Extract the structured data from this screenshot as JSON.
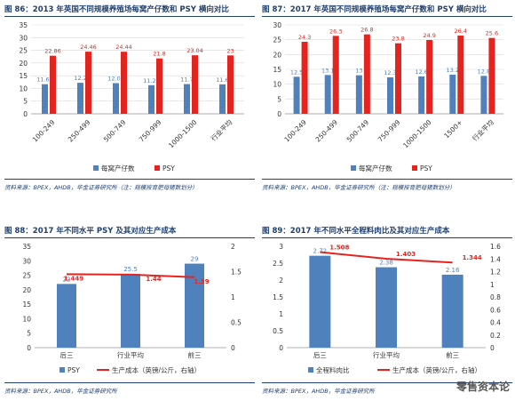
{
  "colors": {
    "bar": "#4f81bd",
    "red": "#e52420",
    "title": "#1f3f6e"
  },
  "watermark": "零售资本论",
  "panels": [
    {
      "title": "图 86：2013 年英国不同规模养殖场每窝产仔数和 PSY 横向对比",
      "source": "资料来源：BPEX，AHDB，华金证券研究所（注：规模按育肥母猪数划分）"
    },
    {
      "title": "图 87：2017 年英国不同规模养殖场每窝产仔数和 PSY 横向对比",
      "source": "资料来源：BPEX，AHDB，华金证券研究所（注：规模按育肥母猪数划分）"
    },
    {
      "title": "图 88：2017 年不同水平 PSY 及其对应生产成本",
      "source": "资料来源：BPEX，AHDB，华金证券研究所"
    },
    {
      "title": "图 89：2017 年不同水平全程料肉比及其对应生产成本",
      "source": "资料来源：BPEX，AHDB，华金证券研究所"
    }
  ],
  "chart_data": [
    {
      "type": "bar",
      "categories": [
        "100-249",
        "250-499",
        "500-749",
        "750-999",
        "1000-1500",
        "行业平均"
      ],
      "series": [
        {
          "name": "每窝产仔数",
          "values": [
            11.65,
            12.2,
            12.07,
            11.27,
            11.7,
            11.6
          ],
          "labels": [
            "11.65",
            "12.2",
            "12.07",
            "11.27",
            "11.7",
            "11.6"
          ]
        },
        {
          "name": "PSY",
          "values": [
            22.86,
            24.46,
            24.44,
            21.8,
            23.04,
            23
          ],
          "labels": [
            "22.86",
            "24.46",
            "24.44",
            "21.8",
            "23.04",
            "23"
          ]
        }
      ],
      "ylim": [
        0,
        35
      ],
      "yticks": [
        0,
        5,
        10,
        15,
        20,
        25,
        30,
        35
      ],
      "grid": true,
      "legend": "bottom"
    },
    {
      "type": "bar",
      "categories": [
        "100-249",
        "250-499",
        "500-749",
        "750-999",
        "1000-1500",
        "1500+",
        "行业平均"
      ],
      "series": [
        {
          "name": "每窝产仔数",
          "values": [
            12.5,
            13.1,
            13,
            12.3,
            12.6,
            13.2,
            12.8
          ],
          "labels": [
            "12.5",
            "13.1",
            "13",
            "12.3",
            "12.6",
            "13.2",
            "12.8"
          ]
        },
        {
          "name": "PSY",
          "values": [
            24.3,
            26.3,
            26.8,
            23.8,
            24.9,
            26.4,
            25.6
          ],
          "labels": [
            "24.3",
            "26.3",
            "26.8",
            "23.8",
            "24.9",
            "26.4",
            "25.6"
          ]
        }
      ],
      "ylim": [
        0,
        30
      ],
      "yticks": [
        0,
        5,
        10,
        15,
        20,
        25,
        30
      ],
      "grid": true,
      "legend": "bottom"
    },
    {
      "type": "bar",
      "categories": [
        "后三",
        "行业平均",
        "前三"
      ],
      "series": [
        {
          "name": "PSY",
          "kind": "bar",
          "axis": "left",
          "values": [
            22,
            25.5,
            29
          ],
          "labels": [
            "22",
            "25.5",
            "29"
          ]
        },
        {
          "name": "生产成本（英镑/公斤，右轴）",
          "kind": "line",
          "axis": "right",
          "values": [
            1.449,
            1.44,
            1.39
          ],
          "labels": [
            "1.449",
            "1.44",
            "1.39"
          ]
        }
      ],
      "ylim": [
        0,
        35
      ],
      "yticks": [
        0,
        5,
        10,
        15,
        20,
        25,
        30,
        35
      ],
      "y2lim": [
        0,
        2
      ],
      "y2ticks": [
        "0",
        "0.5",
        "1",
        "1.5",
        "2"
      ],
      "y2values": [
        0,
        0.5,
        1,
        1.5,
        2
      ],
      "grid": false,
      "legend": "bottom"
    },
    {
      "type": "bar",
      "categories": [
        "后三",
        "行业平均",
        "前三"
      ],
      "series": [
        {
          "name": "全程料肉比",
          "kind": "bar",
          "axis": "left",
          "values": [
            2.72,
            2.38,
            2.16
          ],
          "labels": [
            "2.72",
            "2.38",
            "2.16"
          ]
        },
        {
          "name": "生产成本（英镑/公斤，右轴）",
          "kind": "line",
          "axis": "right",
          "values": [
            1.508,
            1.403,
            1.344
          ],
          "labels": [
            "1.508",
            "1.403",
            "1.344"
          ]
        }
      ],
      "ylim": [
        0,
        3
      ],
      "yticks": [
        "0",
        "0.5",
        "1",
        "1.5",
        "2",
        "2.5",
        "3"
      ],
      "yvalues": [
        0,
        0.5,
        1,
        1.5,
        2,
        2.5,
        3
      ],
      "y2lim": [
        0,
        1.6
      ],
      "y2ticks": [
        "0",
        "0.2",
        "0.4",
        "0.6",
        "0.8",
        "1",
        "1.2",
        "1.4",
        "1.6"
      ],
      "y2values": [
        0,
        0.2,
        0.4,
        0.6,
        0.8,
        1,
        1.2,
        1.4,
        1.6
      ],
      "grid": false,
      "legend": "bottom"
    }
  ]
}
